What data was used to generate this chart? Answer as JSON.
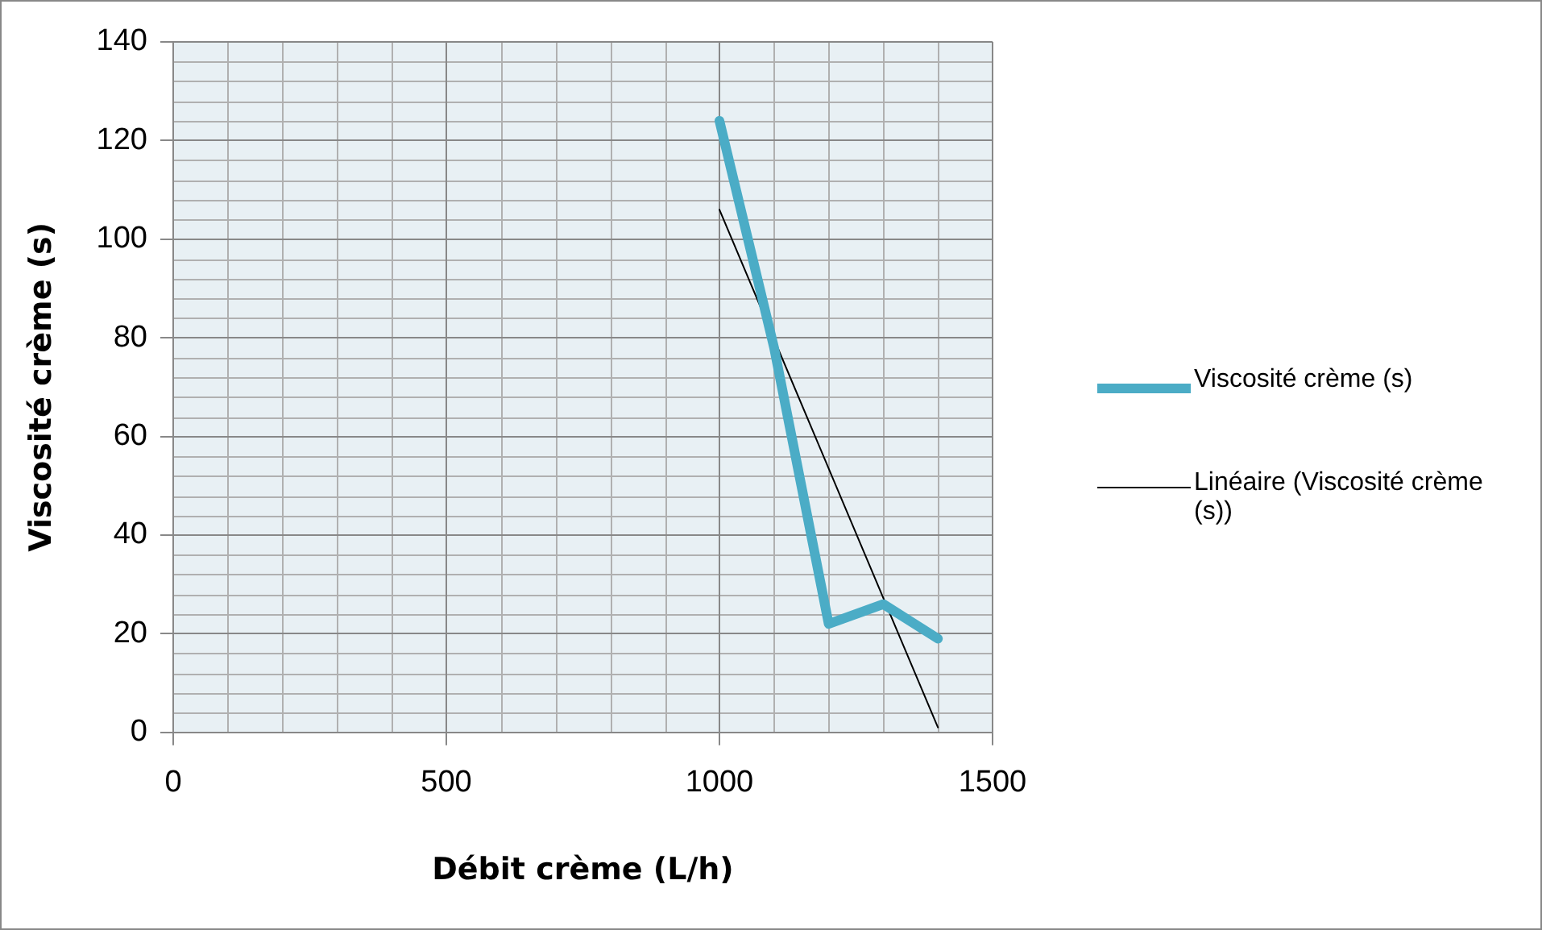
{
  "chart_data": {
    "type": "line",
    "xlabel": "Débit crème (L/h)",
    "ylabel": "Viscosité crème (s)",
    "xlim": [
      0,
      1500
    ],
    "xticks": [
      0,
      500,
      1000,
      1500
    ],
    "ylim": [
      0,
      140
    ],
    "yticks": [
      0,
      20,
      40,
      60,
      80,
      100,
      120,
      140
    ],
    "grid": true,
    "legend": "right",
    "marker": "none",
    "series": [
      {
        "name": "Viscosité crème (s)",
        "color": "#4bacc6",
        "x": [
          1000,
          1100,
          1200,
          1300,
          1400
        ],
        "values": [
          124,
          78,
          22,
          26,
          19
        ]
      },
      {
        "name": "Linéaire (Viscosité crème (s))",
        "color": "#000000",
        "x": [
          1000,
          1400
        ],
        "values": [
          106,
          1
        ]
      }
    ]
  }
}
